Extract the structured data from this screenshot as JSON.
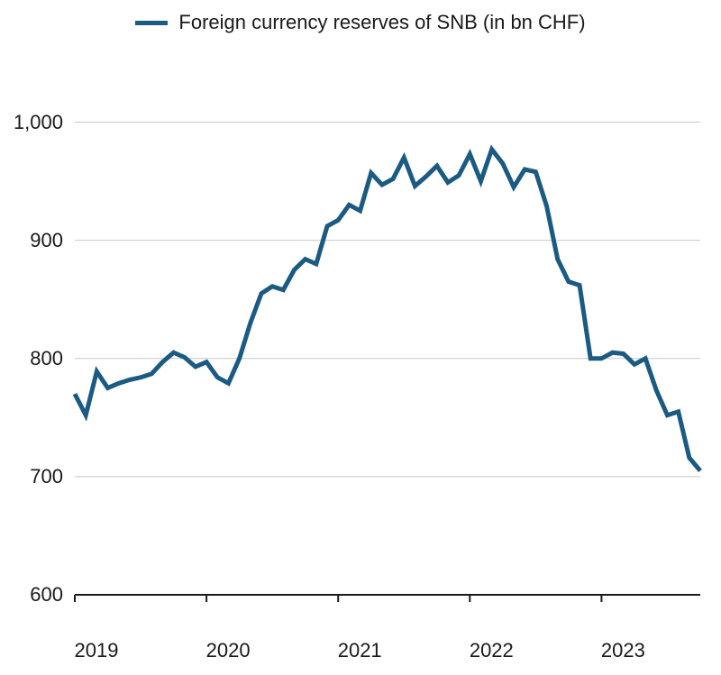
{
  "chart": {
    "type": "line",
    "legend": {
      "label": "Foreign currency reserves of SNB (in bn CHF)",
      "swatch_color": "#1b5a82"
    },
    "background_color": "#ffffff",
    "grid_color": "#c8c8c8",
    "axis_color": "#1a1a1a",
    "line_color": "#1b5a82",
    "line_width": 5,
    "label_fontsize": 22,
    "legend_fontsize": 22,
    "y": {
      "min": 600,
      "max": 1050,
      "ticks": [
        600,
        700,
        800,
        900,
        1000
      ],
      "tick_labels": [
        "600",
        "700",
        "800",
        "900",
        "1,000"
      ]
    },
    "x": {
      "min": 0,
      "max": 57,
      "ticks": [
        0,
        12,
        24,
        36,
        48
      ],
      "tick_labels": [
        "2019",
        "2020",
        "2021",
        "2022",
        "2023"
      ]
    },
    "series": {
      "values": [
        770,
        752,
        789,
        775,
        779,
        782,
        784,
        787,
        797,
        805,
        801,
        793,
        797,
        784,
        779,
        800,
        830,
        855,
        861,
        858,
        875,
        884,
        880,
        912,
        917,
        930,
        925,
        957,
        947,
        952,
        970,
        946,
        954,
        963,
        949,
        955,
        973,
        950,
        977,
        965,
        945,
        960,
        958,
        929,
        884,
        865,
        862,
        800,
        800,
        805,
        804,
        795,
        800,
        773,
        752,
        755,
        716,
        705
      ]
    }
  }
}
